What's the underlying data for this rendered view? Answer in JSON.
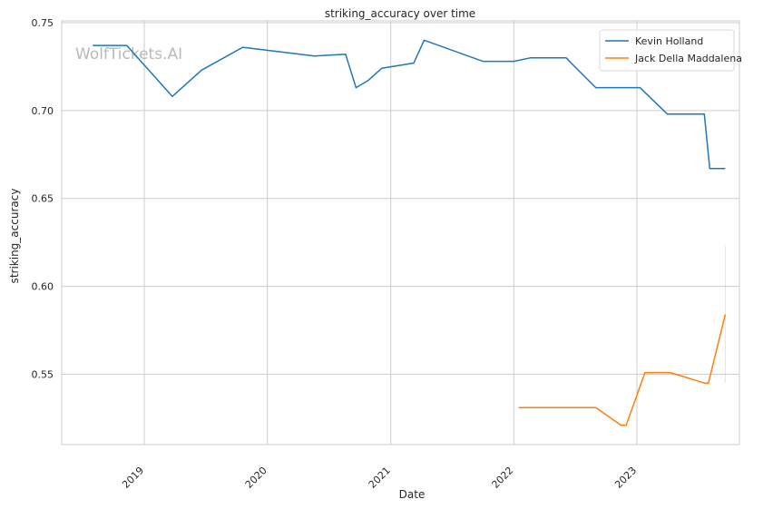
{
  "chart_data": {
    "type": "line",
    "title": "striking_accuracy over time",
    "xlabel": "Date",
    "ylabel": "striking_accuracy",
    "watermark": "WolfTickets.AI",
    "grid": true,
    "legend_position": "top-right",
    "x_ticks": [
      "2019",
      "2020",
      "2021",
      "2022",
      "2023"
    ],
    "y_ticks": [
      "0.55",
      "0.60",
      "0.65",
      "0.70",
      "0.75"
    ],
    "xlim": [
      "2018-05-01",
      "2023-11-01"
    ],
    "ylim": [
      0.51,
      0.751
    ],
    "series": [
      {
        "name": "Kevin Holland",
        "color": "#1f77b4",
        "points": [
          [
            "2018-08-01",
            0.737
          ],
          [
            "2018-11-10",
            0.737
          ],
          [
            "2019-03-25",
            0.708
          ],
          [
            "2019-06-20",
            0.723
          ],
          [
            "2019-10-20",
            0.736
          ],
          [
            "2020-05-20",
            0.731
          ],
          [
            "2020-08-20",
            0.732
          ],
          [
            "2020-09-20",
            0.713
          ],
          [
            "2020-10-25",
            0.717
          ],
          [
            "2020-12-05",
            0.724
          ],
          [
            "2021-03-10",
            0.727
          ],
          [
            "2021-04-10",
            0.74
          ],
          [
            "2021-10-01",
            0.728
          ],
          [
            "2022-01-01",
            0.728
          ],
          [
            "2022-02-20",
            0.73
          ],
          [
            "2022-06-05",
            0.73
          ],
          [
            "2022-06-20",
            0.727
          ],
          [
            "2022-09-01",
            0.713
          ],
          [
            "2023-01-10",
            0.713
          ],
          [
            "2023-04-01",
            0.698
          ],
          [
            "2023-07-20",
            0.698
          ],
          [
            "2023-08-05",
            0.667
          ],
          [
            "2023-09-20",
            0.667
          ]
        ]
      },
      {
        "name": "Jack Della Maddalena",
        "color": "#ff7f0e",
        "points": [
          [
            "2022-01-15",
            0.531
          ],
          [
            "2022-09-01",
            0.531
          ],
          [
            "2022-11-15",
            0.521
          ],
          [
            "2022-11-30",
            0.521
          ],
          [
            "2023-01-25",
            0.551
          ],
          [
            "2023-04-10",
            0.551
          ],
          [
            "2023-07-20",
            0.545
          ],
          [
            "2023-08-01",
            0.545
          ],
          [
            "2023-09-20",
            0.584
          ]
        ],
        "error_band": {
          "x": "2023-09-20",
          "low": 0.545,
          "high": 0.623
        }
      }
    ]
  }
}
